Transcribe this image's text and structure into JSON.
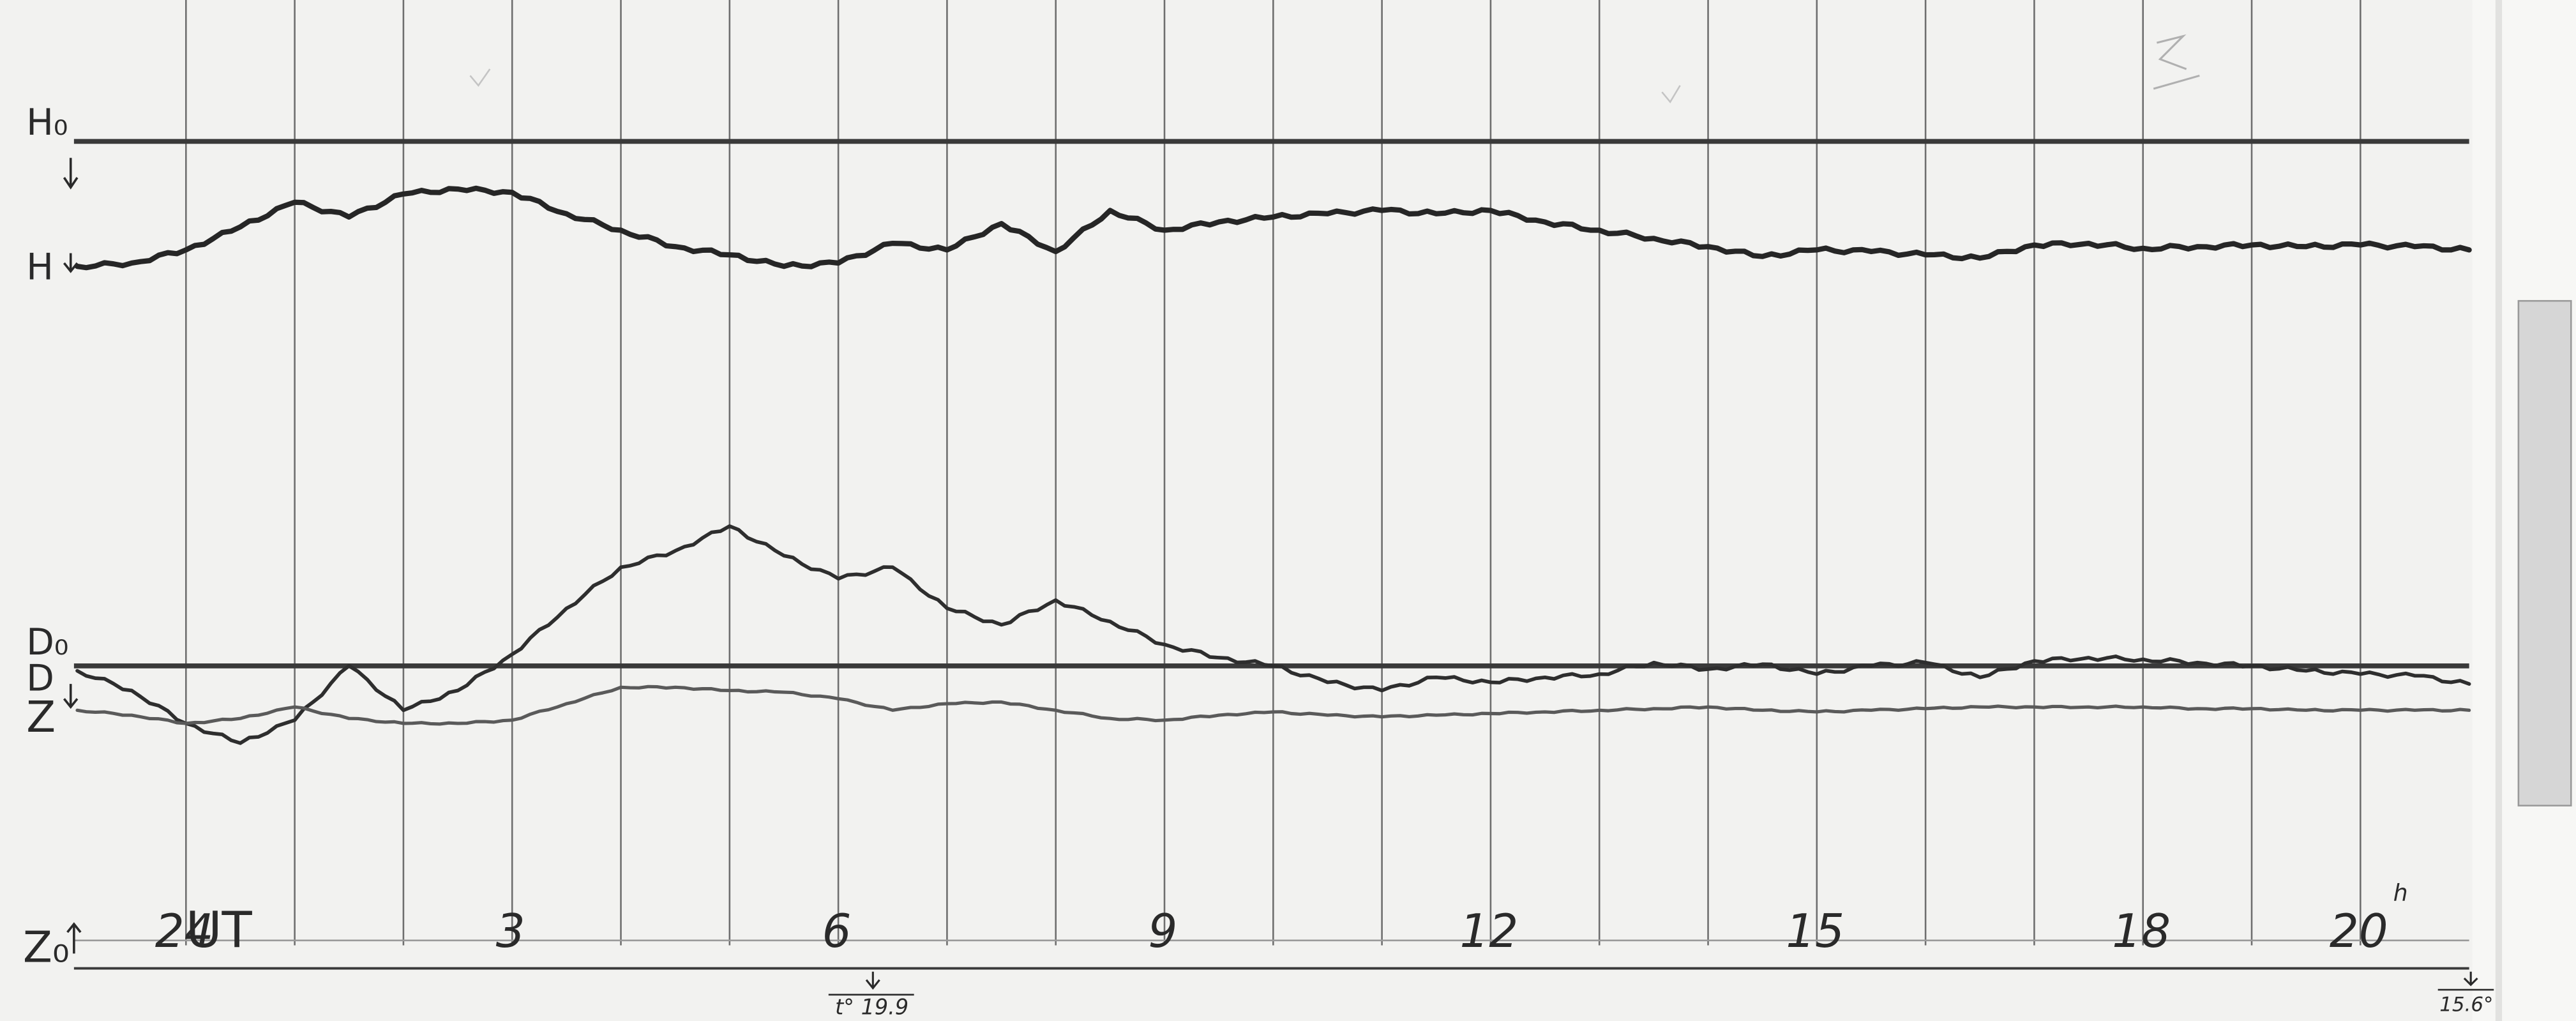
{
  "chart_data": {
    "type": "line",
    "title": "",
    "xlabel": "UT",
    "ylabel": "",
    "grid": true,
    "x_tick_labels": [
      "24",
      "3",
      "6",
      "9",
      "12",
      "15",
      "18",
      "20"
    ],
    "hour_suffix": "h",
    "baseline_labels": {
      "H": "H₀",
      "D": "D₀",
      "Z": "Z₀"
    },
    "trace_labels": {
      "H": "H",
      "D": "D",
      "Z": "Z"
    },
    "temperature_marks": [
      "t° 19.9",
      "15.6°"
    ],
    "series": [
      {
        "name": "H",
        "x": [
          -1,
          -0.5,
          0,
          0.5,
          1,
          1.5,
          2,
          2.5,
          3,
          3.5,
          4,
          4.5,
          5,
          5.5,
          6,
          6.5,
          7,
          7.5,
          8,
          8.5,
          9,
          9.5,
          10,
          10.5,
          11,
          11.5,
          12,
          12.5,
          13,
          13.5,
          14,
          14.5,
          15,
          15.5,
          16,
          16.5,
          17,
          17.5,
          18,
          18.5,
          19,
          19.5,
          20,
          20.5,
          21
        ],
        "values": [
          162,
          160,
          152,
          138,
          123,
          132,
          118,
          115,
          117,
          130,
          140,
          150,
          155,
          162,
          160,
          148,
          152,
          136,
          153,
          128,
          140,
          135,
          132,
          130,
          128,
          130,
          128,
          135,
          140,
          145,
          150,
          156,
          152,
          153,
          155,
          157,
          149,
          148,
          151,
          150,
          149,
          150,
          149,
          150,
          152
        ]
      },
      {
        "name": "D",
        "x": [
          -1,
          -0.5,
          0,
          0.5,
          1,
          1.5,
          2,
          2.5,
          3,
          3.5,
          4,
          4.5,
          5,
          5.5,
          6,
          6.5,
          7,
          7.5,
          8,
          8.5,
          9,
          9.5,
          10,
          10.5,
          11,
          11.5,
          12,
          12.5,
          13,
          13.5,
          14,
          14.5,
          15,
          15.5,
          16,
          16.5,
          17,
          17.5,
          18,
          18.5,
          19,
          19.5,
          20,
          20.5,
          21
        ],
        "values": [
          408,
          420,
          440,
          452,
          438,
          405,
          432,
          420,
          398,
          370,
          345,
          335,
          320,
          338,
          352,
          345,
          370,
          380,
          365,
          378,
          392,
          400,
          405,
          415,
          420,
          412,
          415,
          412,
          410,
          403,
          407,
          404,
          410,
          405,
          403,
          412,
          402,
          400,
          401,
          403,
          405,
          408,
          410,
          411,
          416
        ]
      },
      {
        "name": "Z",
        "x": [
          -1,
          -0.5,
          0,
          0.5,
          1,
          1.5,
          2,
          2.5,
          3,
          3.5,
          4,
          4.5,
          5,
          5.5,
          6,
          6.5,
          7,
          7.5,
          8,
          8.5,
          9,
          9.5,
          10,
          10.5,
          11,
          11.5,
          12,
          12.5,
          13,
          13.5,
          14,
          14.5,
          15,
          15.5,
          16,
          16.5,
          17,
          17.5,
          18,
          18.5,
          19,
          19.5,
          20,
          20.5,
          21
        ],
        "values": [
          432,
          435,
          440,
          437,
          430,
          437,
          440,
          440,
          438,
          428,
          418,
          418,
          420,
          421,
          425,
          432,
          428,
          427,
          432,
          437,
          438,
          435,
          433,
          435,
          436,
          435,
          434,
          433,
          432,
          431,
          430,
          432,
          433,
          432,
          431,
          430,
          430,
          430,
          430,
          431,
          431,
          432,
          432,
          432,
          432
        ]
      }
    ]
  }
}
